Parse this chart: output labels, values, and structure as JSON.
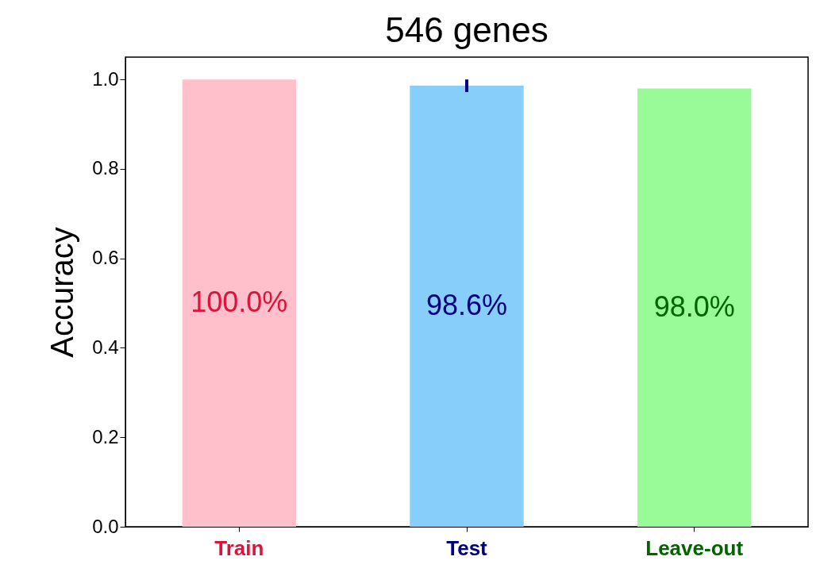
{
  "chart_data": {
    "type": "bar",
    "title": "546 genes",
    "ylabel": "Accuracy",
    "categories": [
      "Train",
      "Test",
      "Leave-out"
    ],
    "values": [
      1.0,
      0.986,
      0.98
    ],
    "colors": [
      "#ffc0cb",
      "#87cefa",
      "#98fb98"
    ],
    "errors": [
      null,
      0.014,
      null
    ],
    "value_labels": [
      "100.0%",
      "98.6%",
      "98.0%"
    ],
    "ylim": [
      0,
      1.05
    ],
    "yticks": [
      {
        "value": 0,
        "label": "0.0"
      },
      {
        "value": 0.2,
        "label": "0.2"
      },
      {
        "value": 0.4,
        "label": "0.4"
      },
      {
        "value": 0.6,
        "label": "0.6"
      },
      {
        "value": 0.8,
        "label": "0.8"
      },
      {
        "value": 1,
        "label": "1.0"
      }
    ],
    "grid": false,
    "legend": false
  }
}
